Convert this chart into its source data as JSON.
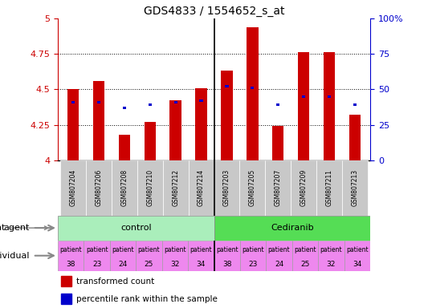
{
  "title": "GDS4833 / 1554652_s_at",
  "samples": [
    "GSM807204",
    "GSM807206",
    "GSM807208",
    "GSM807210",
    "GSM807212",
    "GSM807214",
    "GSM807203",
    "GSM807205",
    "GSM807207",
    "GSM807209",
    "GSM807211",
    "GSM807213"
  ],
  "red_values": [
    4.5,
    4.56,
    4.18,
    4.27,
    4.42,
    4.51,
    4.63,
    4.94,
    4.24,
    4.76,
    4.76,
    4.32
  ],
  "blue_values": [
    4.41,
    4.41,
    4.37,
    4.39,
    4.41,
    4.42,
    4.52,
    4.51,
    4.39,
    4.45,
    4.45,
    4.39
  ],
  "ylim_left": [
    4.0,
    5.0
  ],
  "ylim_right": [
    0,
    100
  ],
  "yticks_left": [
    4.0,
    4.25,
    4.5,
    4.75,
    5.0
  ],
  "ytick_labels_left": [
    "4",
    "4.25",
    "4.5",
    "4.75",
    "5"
  ],
  "yticks_right": [
    0,
    25,
    50,
    75,
    100
  ],
  "ytick_labels_right": [
    "0",
    "25",
    "50",
    "75",
    "100%"
  ],
  "bar_base": 4.0,
  "bar_color_red": "#CC0000",
  "bar_color_blue": "#0000CC",
  "tick_label_color_left": "#CC0000",
  "tick_label_color_right": "#0000CC",
  "grid_color": "#000000",
  "control_green": "#AAEEBB",
  "cediranib_green": "#55DD55",
  "sample_bg": "#C8C8C8",
  "patient_pink": "#EE88EE",
  "patient_white": "#FFFFFF",
  "pat_nums_ctrl": [
    "38",
    "23",
    "24",
    "25",
    "32",
    "34"
  ],
  "pat_nums_ced": [
    "38",
    "23",
    "24",
    "25",
    "32",
    "34"
  ],
  "pat_colors_ctrl": [
    "#EE88EE",
    "#EE88EE",
    "#EE88EE",
    "#EE88EE",
    "#EE88EE",
    "#EE88EE"
  ],
  "pat_colors_ced": [
    "#EE88EE",
    "#EE88EE",
    "#EE88EE",
    "#EE88EE",
    "#EE88EE",
    "#EE88EE"
  ]
}
